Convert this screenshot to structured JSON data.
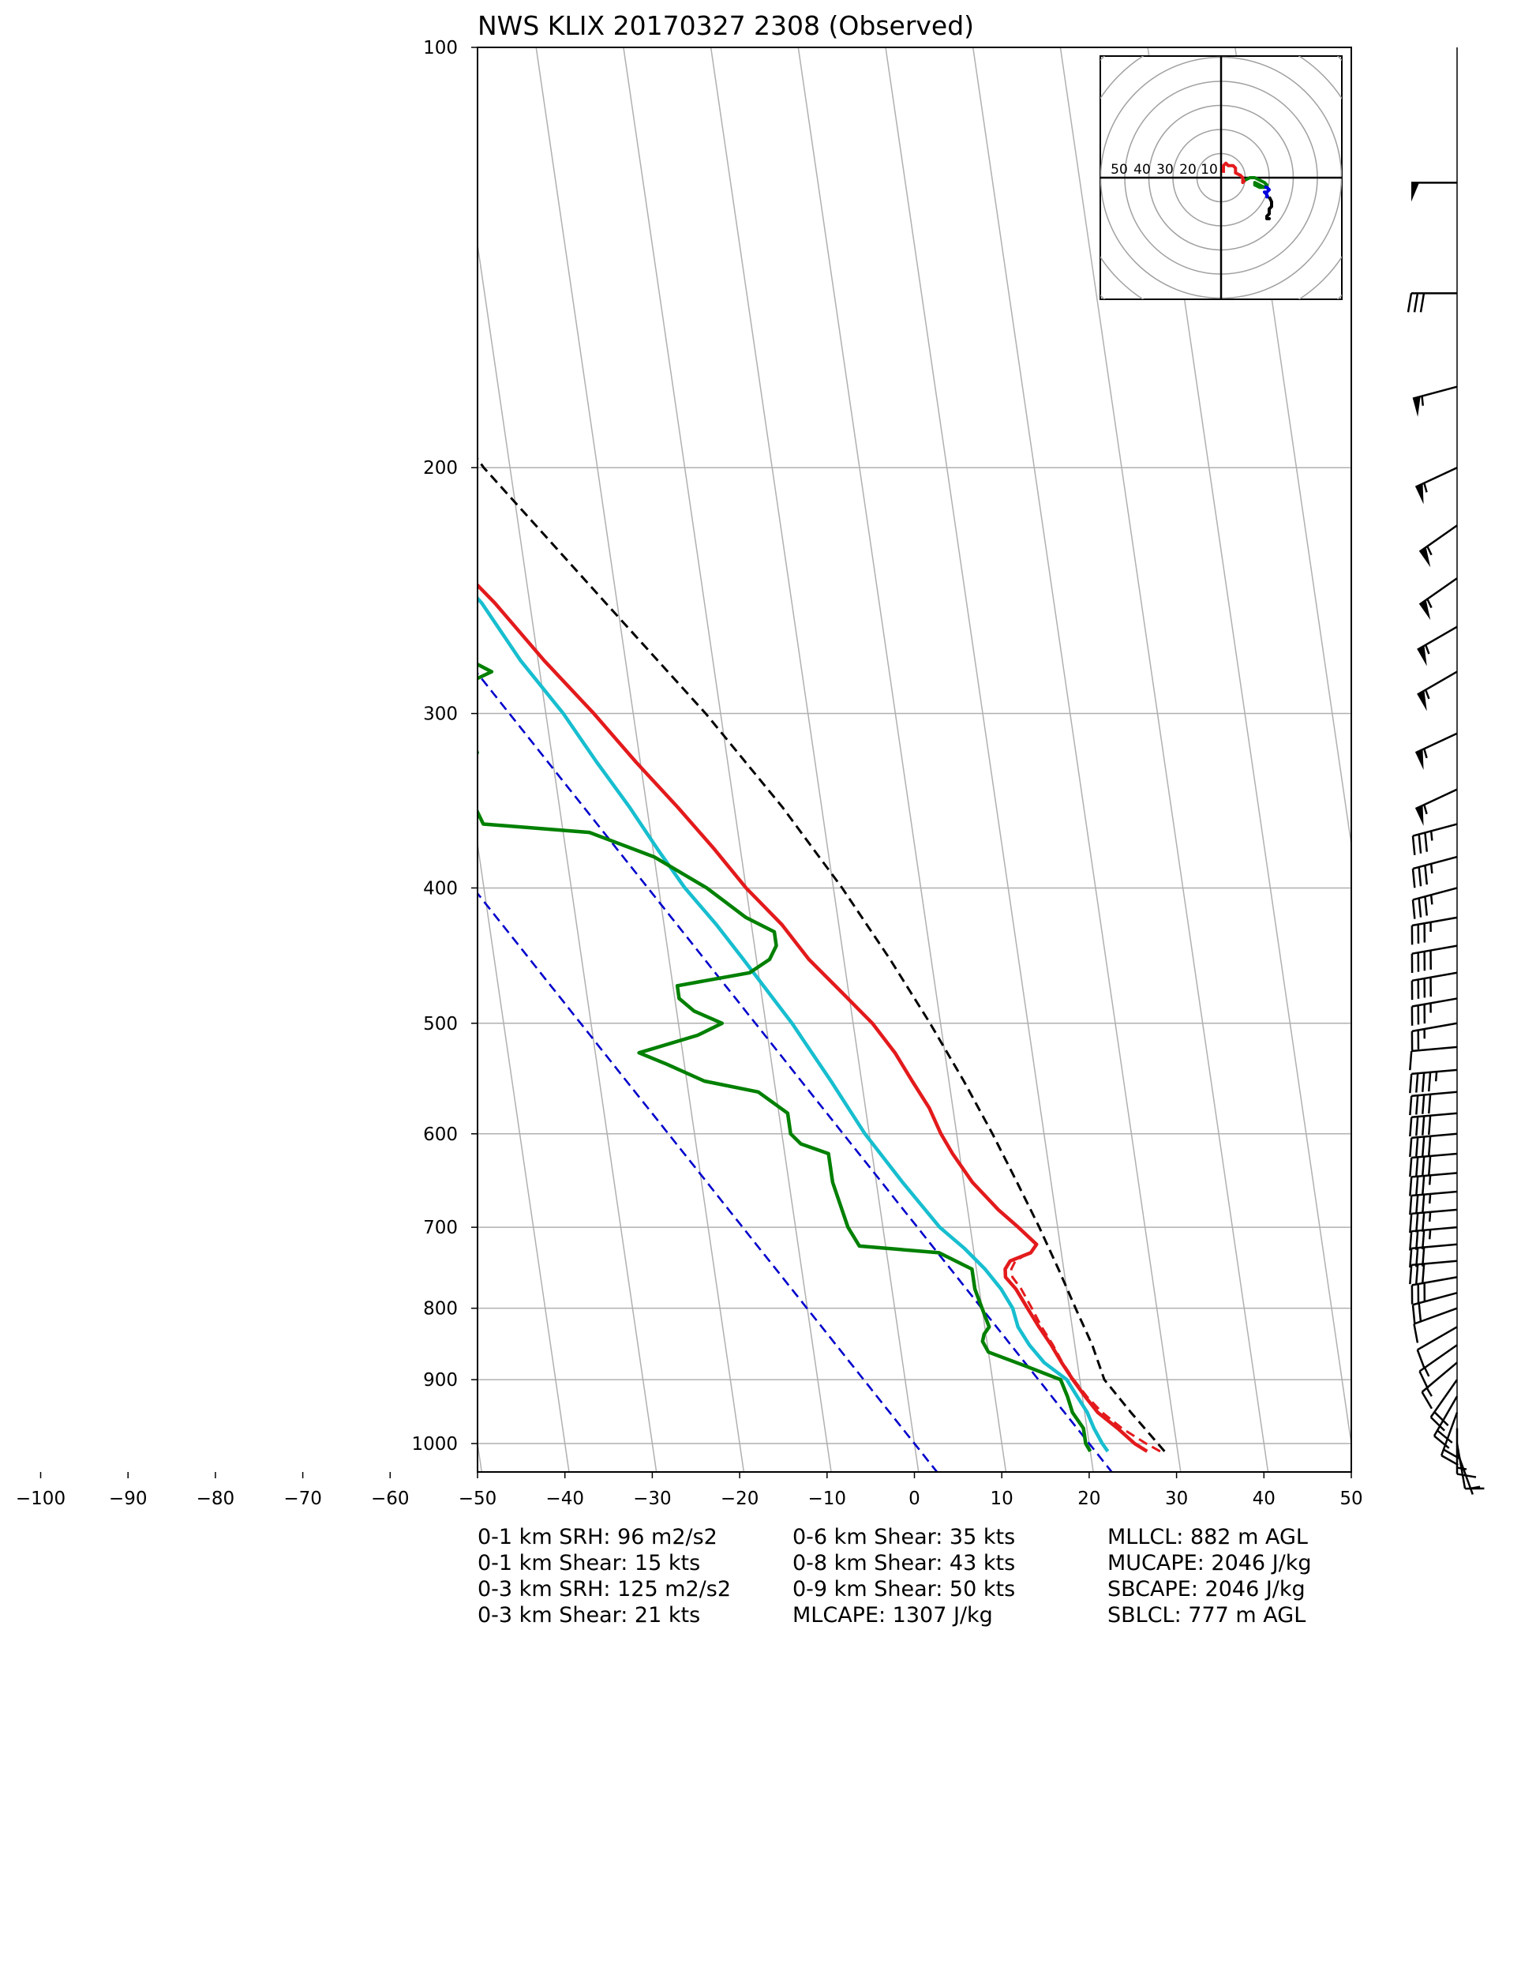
{
  "chart_data": {
    "type": "skew-t",
    "title": "NWS KLIX 20170327 2308   (Observed)",
    "x_ticks": [
      -100,
      -90,
      -80,
      -70,
      -60,
      -50,
      -40,
      -30,
      -20,
      -10,
      0,
      10,
      20,
      30,
      40,
      50
    ],
    "y_ticks": [
      100,
      200,
      300,
      400,
      500,
      600,
      700,
      800,
      900,
      1000
    ],
    "xlim": [
      -50,
      50
    ],
    "ylim_hpa": [
      1050,
      100
    ],
    "y_scale": "log",
    "grid": true,
    "series": [
      {
        "color": "#e31a1c",
        "points": [
          [
            1013,
            26.5
          ],
          [
            1000,
            25.2
          ],
          [
            975,
            23.5
          ],
          [
            950,
            21.5
          ],
          [
            925,
            20.3
          ],
          [
            900,
            19.2
          ],
          [
            875,
            18.2
          ],
          [
            850,
            17.3
          ],
          [
            825,
            16.2
          ],
          [
            800,
            15.2
          ],
          [
            775,
            14.2
          ],
          [
            760,
            13.2
          ],
          [
            750,
            13.3
          ],
          [
            740,
            14.0
          ],
          [
            730,
            16.5
          ],
          [
            720,
            17.3
          ],
          [
            700,
            15.5
          ],
          [
            680,
            13.5
          ],
          [
            650,
            11.0
          ],
          [
            620,
            9.2
          ],
          [
            600,
            8.2
          ],
          [
            575,
            7.3
          ],
          [
            550,
            5.8
          ],
          [
            525,
            4.3
          ],
          [
            500,
            2.2
          ],
          [
            475,
            -0.8
          ],
          [
            450,
            -4.0
          ],
          [
            425,
            -6.5
          ],
          [
            400,
            -10.0
          ],
          [
            375,
            -13.0
          ],
          [
            350,
            -16.5
          ],
          [
            325,
            -20.5
          ],
          [
            300,
            -24.5
          ],
          [
            275,
            -29.3
          ],
          [
            250,
            -34.0
          ],
          [
            230,
            -38.8
          ],
          [
            215,
            -42.5
          ],
          [
            205,
            -43.5
          ],
          [
            200,
            -42.0
          ],
          [
            190,
            -41.5
          ],
          [
            180,
            -43.5
          ],
          [
            170,
            -41.0
          ],
          [
            160,
            -40.5
          ],
          [
            150,
            -42.5
          ],
          [
            145,
            -44.0
          ],
          [
            137,
            -47.0
          ],
          [
            130,
            -48.5
          ],
          [
            120,
            -49.0
          ],
          [
            110,
            -52.0
          ],
          [
            100,
            -55.5
          ]
        ]
      },
      {
        "color": "#e31a1c",
        "dashed": true,
        "points": [
          [
            1013,
            28.0
          ],
          [
            1000,
            26.5
          ],
          [
            975,
            24.0
          ],
          [
            950,
            22.0
          ],
          [
            925,
            20.5
          ],
          [
            900,
            19.3
          ],
          [
            875,
            18.3
          ],
          [
            850,
            17.5
          ],
          [
            825,
            16.5
          ],
          [
            800,
            15.7
          ],
          [
            775,
            14.8
          ],
          [
            760,
            14.0
          ],
          [
            750,
            14.0
          ],
          [
            740,
            14.6
          ],
          [
            730,
            16.3
          ]
        ]
      },
      {
        "color": "#17becf",
        "points": [
          [
            1013,
            22.0
          ],
          [
            1000,
            21.5
          ],
          [
            975,
            20.8
          ],
          [
            950,
            20.3
          ],
          [
            925,
            19.4
          ],
          [
            900,
            18.5
          ],
          [
            875,
            16.2
          ],
          [
            850,
            14.8
          ],
          [
            825,
            13.8
          ],
          [
            800,
            13.5
          ],
          [
            775,
            12.5
          ],
          [
            750,
            11.0
          ],
          [
            725,
            9.0
          ],
          [
            700,
            6.5
          ],
          [
            650,
            3.0
          ],
          [
            600,
            -0.5
          ],
          [
            550,
            -3.5
          ],
          [
            500,
            -7.0
          ],
          [
            450,
            -11.5
          ],
          [
            425,
            -14.0
          ],
          [
            400,
            -17.0
          ],
          [
            375,
            -19.5
          ],
          [
            350,
            -22.0
          ],
          [
            325,
            -25.0
          ],
          [
            300,
            -28.0
          ],
          [
            275,
            -32.0
          ],
          [
            250,
            -35.5
          ],
          [
            230,
            -40.0
          ],
          [
            215,
            -43.0
          ],
          [
            205,
            -43.8
          ],
          [
            200,
            -42.5
          ],
          [
            190,
            -42.5
          ],
          [
            175,
            -43.5
          ],
          [
            165,
            -41.5
          ],
          [
            160,
            -41.5
          ],
          [
            150,
            -43.0
          ],
          [
            140,
            -46.0
          ],
          [
            137,
            -48.0
          ],
          [
            130,
            -49.5
          ],
          [
            120,
            -49.5
          ],
          [
            110,
            -52.5
          ],
          [
            100,
            -56.0
          ]
        ]
      },
      {
        "color": "#008000",
        "points": [
          [
            1013,
            20.0
          ],
          [
            1000,
            19.6
          ],
          [
            975,
            19.6
          ],
          [
            950,
            18.6
          ],
          [
            925,
            18.3
          ],
          [
            900,
            17.8
          ],
          [
            880,
            14.0
          ],
          [
            860,
            10.0
          ],
          [
            845,
            9.5
          ],
          [
            835,
            9.8
          ],
          [
            825,
            10.5
          ],
          [
            800,
            10.0
          ],
          [
            775,
            9.5
          ],
          [
            750,
            9.5
          ],
          [
            730,
            6.0
          ],
          [
            722,
            -3.0
          ],
          [
            700,
            -4.0
          ],
          [
            650,
            -5.0
          ],
          [
            620,
            -5.0
          ],
          [
            610,
            -8.0
          ],
          [
            600,
            -9.0
          ],
          [
            580,
            -9.0
          ],
          [
            560,
            -12.0
          ],
          [
            550,
            -18.0
          ],
          [
            535,
            -22.0
          ],
          [
            525,
            -25.0
          ],
          [
            510,
            -18.0
          ],
          [
            500,
            -15.0
          ],
          [
            490,
            -18.0
          ],
          [
            480,
            -19.5
          ],
          [
            470,
            -19.5
          ],
          [
            460,
            -11.0
          ],
          [
            450,
            -8.5
          ],
          [
            440,
            -7.5
          ],
          [
            430,
            -7.5
          ],
          [
            420,
            -10.5
          ],
          [
            400,
            -14.5
          ],
          [
            380,
            -20.0
          ],
          [
            365,
            -27.0
          ],
          [
            360,
            -39.0
          ],
          [
            345,
            -40.0
          ],
          [
            330,
            -41.0
          ],
          [
            320,
            -38.5
          ],
          [
            310,
            -39.0
          ],
          [
            300,
            -40.0
          ],
          [
            290,
            -41.0
          ],
          [
            280,
            -35.5
          ],
          [
            270,
            -40.0
          ],
          [
            250,
            -42.0
          ],
          [
            230,
            -43.5
          ],
          [
            215,
            -45.0
          ],
          [
            205,
            -46.5
          ],
          [
            200,
            -52.0
          ],
          [
            190,
            -65.0
          ],
          [
            180,
            -67.0
          ],
          [
            170,
            -64.0
          ],
          [
            160,
            -65.0
          ],
          [
            150,
            -64.5
          ],
          [
            140,
            -63.5
          ],
          [
            130,
            -63.0
          ],
          [
            120,
            -61.0
          ],
          [
            110,
            -59.0
          ],
          [
            100,
            -58.5
          ]
        ]
      },
      {
        "color": "#000000",
        "dashed": true,
        "name": "parcel",
        "points": [
          [
            1013,
            28.5
          ],
          [
            950,
            25.3
          ],
          [
            900,
            22.8
          ],
          [
            850,
            22.0
          ],
          [
            800,
            20.7
          ],
          [
            750,
            19.4
          ],
          [
            700,
            17.9
          ],
          [
            650,
            16.1
          ],
          [
            600,
            14.1
          ],
          [
            550,
            11.7
          ],
          [
            500,
            8.8
          ],
          [
            450,
            5.3
          ],
          [
            400,
            1.0
          ],
          [
            350,
            -4.5
          ],
          [
            300,
            -11.7
          ],
          [
            250,
            -21.3
          ],
          [
            200,
            -33.0
          ],
          [
            150,
            -44.5
          ],
          [
            120,
            -51.0
          ],
          [
            100,
            -55.0
          ]
        ]
      }
    ],
    "moist_adiabats": [
      0,
      20
    ]
  },
  "hodograph": {
    "ring_labels": [
      "50",
      "40",
      "30",
      "20",
      "10"
    ],
    "segments": [
      {
        "color": "#e31a1c",
        "points": [
          [
            1,
            2
          ],
          [
            1,
            5
          ],
          [
            2,
            6
          ],
          [
            3,
            5
          ],
          [
            5,
            5
          ],
          [
            6,
            4
          ],
          [
            6,
            2
          ],
          [
            8,
            1
          ],
          [
            9,
            0
          ],
          [
            9,
            -2
          ],
          [
            10,
            -1
          ]
        ]
      },
      {
        "color": "#008000",
        "points": [
          [
            10,
            -1
          ],
          [
            12,
            0
          ],
          [
            14,
            0
          ],
          [
            16,
            -1
          ],
          [
            18,
            -2
          ],
          [
            19,
            -3
          ],
          [
            18,
            -4
          ],
          [
            16,
            -3
          ],
          [
            14,
            -2
          ],
          [
            14,
            -3
          ],
          [
            16,
            -4
          ],
          [
            18,
            -4
          ]
        ]
      },
      {
        "color": "#0000dd",
        "points": [
          [
            18,
            -4
          ],
          [
            19,
            -4
          ],
          [
            20,
            -5
          ],
          [
            19,
            -6
          ],
          [
            18,
            -6
          ],
          [
            19,
            -7
          ],
          [
            19,
            -8
          ],
          [
            20,
            -8
          ]
        ]
      },
      {
        "color": "#000000",
        "points": [
          [
            20,
            -8
          ],
          [
            21,
            -10
          ],
          [
            21,
            -12
          ],
          [
            20,
            -13
          ],
          [
            20,
            -15
          ],
          [
            19,
            -16
          ],
          [
            19,
            -17
          ],
          [
            20,
            -17
          ],
          [
            19,
            -17
          ]
        ]
      }
    ]
  },
  "wind_barbs": [
    {
      "p": 1013,
      "speed": 5,
      "dir": 160
    },
    {
      "p": 1000,
      "speed": 10,
      "dir": 170
    },
    {
      "p": 975,
      "speed": 15,
      "dir": 180
    },
    {
      "p": 950,
      "speed": 20,
      "dir": 200
    },
    {
      "p": 925,
      "speed": 20,
      "dir": 210
    },
    {
      "p": 900,
      "speed": 20,
      "dir": 215
    },
    {
      "p": 875,
      "speed": 15,
      "dir": 230
    },
    {
      "p": 850,
      "speed": 15,
      "dir": 235
    },
    {
      "p": 825,
      "speed": 10,
      "dir": 240
    },
    {
      "p": 800,
      "speed": 10,
      "dir": 250
    },
    {
      "p": 780,
      "speed": 20,
      "dir": 255
    },
    {
      "p": 760,
      "speed": 30,
      "dir": 260
    },
    {
      "p": 740,
      "speed": 30,
      "dir": 265
    },
    {
      "p": 720,
      "speed": 30,
      "dir": 265
    },
    {
      "p": 700,
      "speed": 35,
      "dir": 265
    },
    {
      "p": 680,
      "speed": 35,
      "dir": 265
    },
    {
      "p": 660,
      "speed": 35,
      "dir": 265
    },
    {
      "p": 640,
      "speed": 35,
      "dir": 265
    },
    {
      "p": 620,
      "speed": 40,
      "dir": 265
    },
    {
      "p": 600,
      "speed": 40,
      "dir": 265
    },
    {
      "p": 580,
      "speed": 40,
      "dir": 265
    },
    {
      "p": 560,
      "speed": 40,
      "dir": 265
    },
    {
      "p": 540,
      "speed": 45,
      "dir": 265
    },
    {
      "p": 520,
      "speed": 10,
      "dir": 265
    },
    {
      "p": 500,
      "speed": 25,
      "dir": 260
    },
    {
      "p": 480,
      "speed": 35,
      "dir": 260
    },
    {
      "p": 460,
      "speed": 40,
      "dir": 260
    },
    {
      "p": 440,
      "speed": 40,
      "dir": 260
    },
    {
      "p": 420,
      "speed": 35,
      "dir": 260
    },
    {
      "p": 400,
      "speed": 35,
      "dir": 255
    },
    {
      "p": 380,
      "speed": 35,
      "dir": 255
    },
    {
      "p": 360,
      "speed": 35,
      "dir": 255
    },
    {
      "p": 340,
      "speed": 55,
      "dir": 245
    },
    {
      "p": 310,
      "speed": 55,
      "dir": 245
    },
    {
      "p": 280,
      "speed": 55,
      "dir": 240
    },
    {
      "p": 260,
      "speed": 55,
      "dir": 240
    },
    {
      "p": 240,
      "speed": 55,
      "dir": 235
    },
    {
      "p": 220,
      "speed": 55,
      "dir": 235
    },
    {
      "p": 200,
      "speed": 55,
      "dir": 245
    },
    {
      "p": 175,
      "speed": 55,
      "dir": 255
    },
    {
      "p": 150,
      "speed": 30,
      "dir": 270
    },
    {
      "p": 125,
      "speed": 50,
      "dir": 270
    }
  ],
  "stats": {
    "col1": [
      "0-1 km SRH: 96 m2/s2",
      "0-1 km Shear: 15 kts",
      "0-3 km SRH: 125 m2/s2",
      "0-3 km Shear: 21 kts"
    ],
    "col2": [
      "0-6 km Shear: 35 kts",
      "0-8 km Shear: 43 kts",
      "0-9 km Shear: 50 kts",
      "MLCAPE: 1307 J/kg"
    ],
    "col3": [
      "MLLCL: 882 m AGL",
      "MUCAPE: 2046 J/kg",
      "SBCAPE: 2046 J/kg",
      "SBLCL: 777 m AGL"
    ]
  }
}
